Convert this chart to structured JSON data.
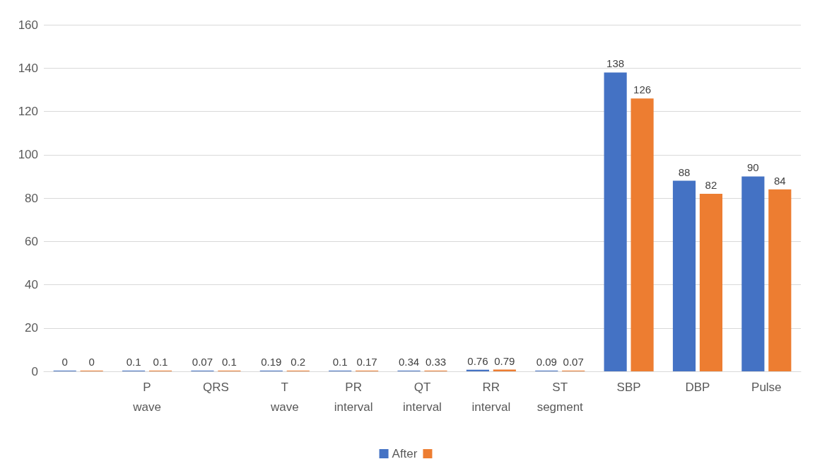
{
  "chart_data": {
    "type": "bar",
    "categories": [
      null,
      "P wave",
      "QRS",
      "T wave",
      "PR interval",
      "QT interval",
      "RR interval",
      "ST segment",
      "SBP",
      "DBP",
      "Pulse"
    ],
    "series": [
      {
        "name": "After",
        "color": "#4472c4",
        "values": [
          0,
          0.1,
          0.07,
          0.19,
          0.1,
          0.34,
          0.76,
          0.09,
          138,
          88,
          90
        ]
      },
      {
        "color": "#ed7d31",
        "values": [
          0,
          0.1,
          0.1,
          0.2,
          0.17,
          0.33,
          0.79,
          0.07,
          126,
          82,
          84
        ]
      }
    ],
    "ylim": [
      0,
      160
    ],
    "yticks": [
      0,
      20,
      40,
      60,
      80,
      100,
      120,
      140,
      160
    ],
    "grid": "y",
    "legend": "bottom",
    "data_labels": true
  }
}
